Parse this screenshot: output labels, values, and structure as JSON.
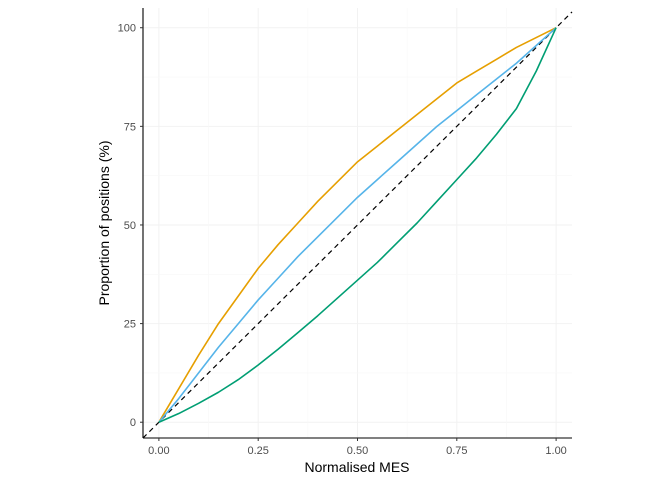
{
  "chart_data": {
    "type": "line",
    "title": "",
    "xlabel": "Normalised MES",
    "ylabel": "Proportion of positions (%)",
    "xlim": [
      -0.04,
      1.04
    ],
    "ylim": [
      -4,
      105
    ],
    "x_ticks": [
      0,
      0.25,
      0.5,
      0.75,
      1
    ],
    "x_tick_labels": [
      "0.00",
      "0.25",
      "0.50",
      "0.75",
      "1.00"
    ],
    "y_ticks": [
      0,
      25,
      50,
      75,
      100
    ],
    "y_tick_labels": [
      "0",
      "25",
      "50",
      "75",
      "100"
    ],
    "grid": true,
    "legend": "none",
    "reference_line": {
      "style": "dashed",
      "color": "#000000",
      "points": [
        [
          -0.04,
          -4
        ],
        [
          1.04,
          104
        ]
      ]
    },
    "series": [
      {
        "color": "#E69F00",
        "x": [
          0,
          0.05,
          0.1,
          0.15,
          0.2,
          0.25,
          0.3,
          0.35,
          0.4,
          0.45,
          0.5,
          0.55,
          0.6,
          0.65,
          0.7,
          0.75,
          0.8,
          0.85,
          0.9,
          0.95,
          1
        ],
        "y": [
          0,
          8.5,
          17,
          25,
          32,
          39,
          45,
          50.5,
          56,
          61,
          66,
          70,
          74,
          78,
          82,
          86,
          89,
          92,
          95,
          97.5,
          100
        ]
      },
      {
        "color": "#56B4E9",
        "x": [
          0,
          0.05,
          0.1,
          0.15,
          0.2,
          0.25,
          0.3,
          0.35,
          0.4,
          0.45,
          0.5,
          0.55,
          0.6,
          0.65,
          0.7,
          0.75,
          0.8,
          0.85,
          0.9,
          0.95,
          1
        ],
        "y": [
          0,
          6,
          12.5,
          19,
          25,
          31,
          36.5,
          42,
          47,
          52,
          57,
          61.5,
          66,
          70.5,
          75,
          79,
          83,
          87,
          91,
          95.5,
          100
        ]
      },
      {
        "color": "#009E73",
        "x": [
          0,
          0.05,
          0.1,
          0.15,
          0.2,
          0.25,
          0.3,
          0.35,
          0.4,
          0.45,
          0.5,
          0.55,
          0.6,
          0.65,
          0.7,
          0.75,
          0.8,
          0.85,
          0.9,
          0.95,
          1
        ],
        "y": [
          0,
          2.2,
          4.8,
          7.6,
          10.8,
          14.5,
          18.5,
          22.7,
          27,
          31.5,
          36,
          40.5,
          45.5,
          50.5,
          56,
          61.5,
          67,
          73,
          79.5,
          89,
          100
        ]
      }
    ]
  }
}
